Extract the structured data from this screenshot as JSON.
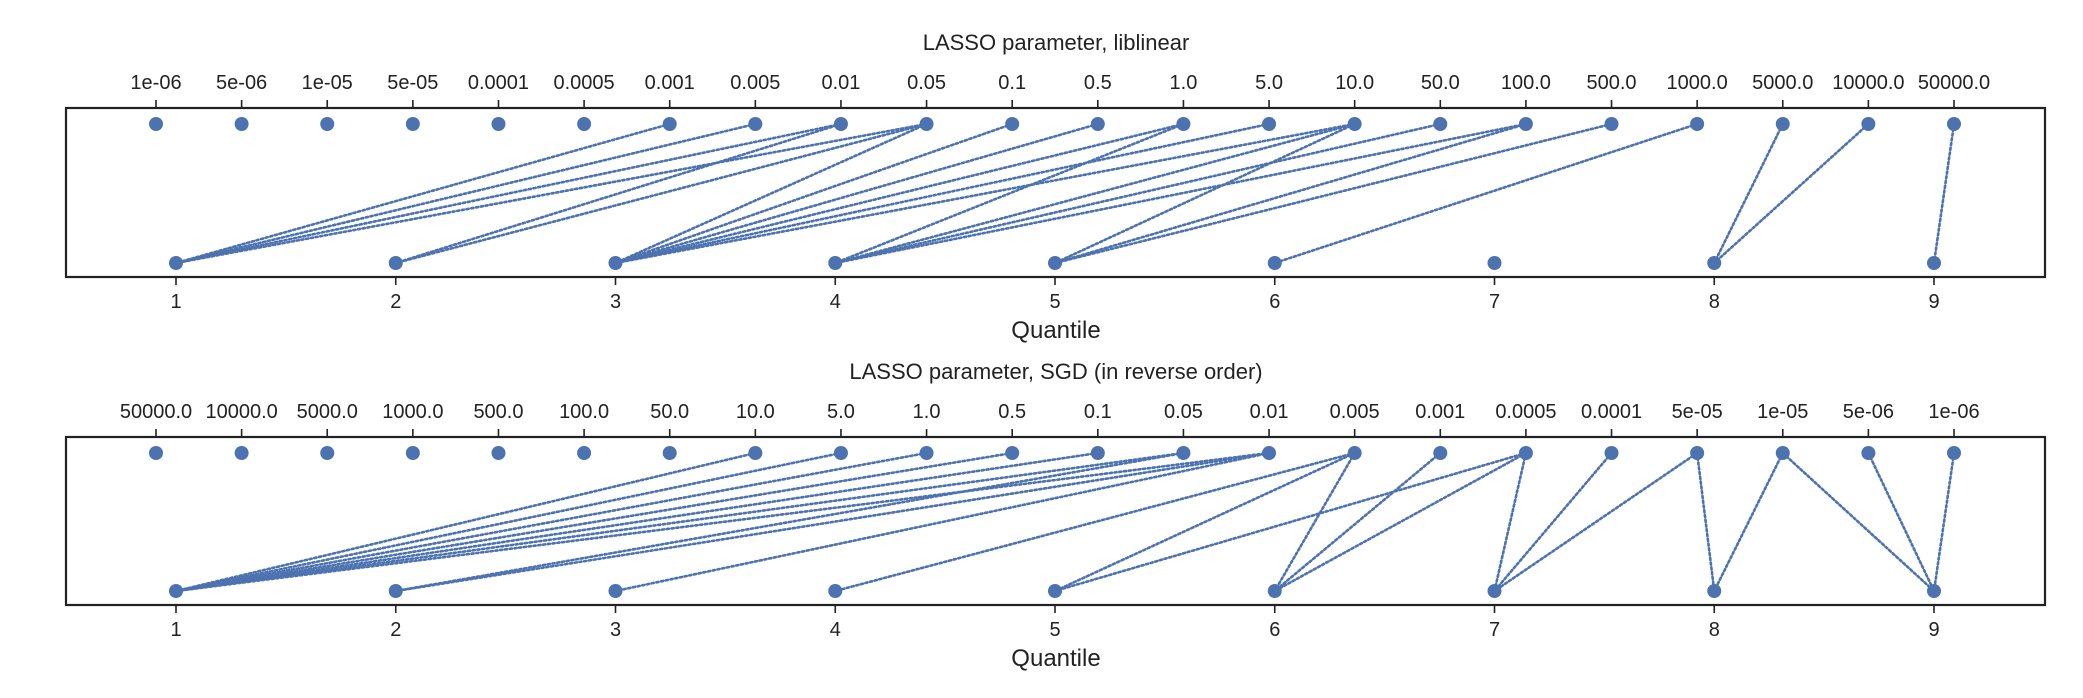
{
  "chart_data": [
    {
      "type": "bipartite",
      "title": "LASSO parameter, liblinear",
      "top_axis_labels": [
        "1e-06",
        "5e-06",
        "1e-05",
        "5e-05",
        "0.0001",
        "0.0005",
        "0.001",
        "0.005",
        "0.01",
        "0.05",
        "0.1",
        "0.5",
        "1.0",
        "5.0",
        "10.0",
        "50.0",
        "100.0",
        "500.0",
        "1000.0",
        "5000.0",
        "10000.0",
        "50000.0"
      ],
      "bottom_axis_labels": [
        "1",
        "2",
        "3",
        "4",
        "5",
        "6",
        "7",
        "8",
        "9"
      ],
      "xlabel": "Quantile",
      "color": "#4c72b0",
      "links": [
        [
          "0.001",
          "1"
        ],
        [
          "0.005",
          "1"
        ],
        [
          "0.01",
          "1"
        ],
        [
          "0.05",
          "1"
        ],
        [
          "0.01",
          "2"
        ],
        [
          "0.05",
          "2"
        ],
        [
          "0.05",
          "3"
        ],
        [
          "0.1",
          "3"
        ],
        [
          "0.5",
          "3"
        ],
        [
          "1.0",
          "3"
        ],
        [
          "5.0",
          "3"
        ],
        [
          "10.0",
          "3"
        ],
        [
          "1.0",
          "4"
        ],
        [
          "10.0",
          "4"
        ],
        [
          "50.0",
          "4"
        ],
        [
          "100.0",
          "4"
        ],
        [
          "10.0",
          "5"
        ],
        [
          "100.0",
          "5"
        ],
        [
          "500.0",
          "5"
        ],
        [
          "1000.0",
          "6"
        ],
        [
          "5000.0",
          "8"
        ],
        [
          "10000.0",
          "8"
        ],
        [
          "50000.0",
          "9"
        ]
      ]
    },
    {
      "type": "bipartite",
      "title": "LASSO parameter, SGD (in reverse order)",
      "top_axis_labels": [
        "50000.0",
        "10000.0",
        "5000.0",
        "1000.0",
        "500.0",
        "100.0",
        "50.0",
        "10.0",
        "5.0",
        "1.0",
        "0.5",
        "0.1",
        "0.05",
        "0.01",
        "0.005",
        "0.001",
        "0.0005",
        "0.0001",
        "5e-05",
        "1e-05",
        "5e-06",
        "1e-06"
      ],
      "bottom_axis_labels": [
        "1",
        "2",
        "3",
        "4",
        "5",
        "6",
        "7",
        "8",
        "9"
      ],
      "xlabel": "Quantile",
      "color": "#4c72b0",
      "links": [
        [
          "10.0",
          "1"
        ],
        [
          "5.0",
          "1"
        ],
        [
          "1.0",
          "1"
        ],
        [
          "0.5",
          "1"
        ],
        [
          "0.1",
          "1"
        ],
        [
          "0.05",
          "1"
        ],
        [
          "0.01",
          "1"
        ],
        [
          "0.05",
          "2"
        ],
        [
          "0.01",
          "2"
        ],
        [
          "0.01",
          "3"
        ],
        [
          "0.005",
          "4"
        ],
        [
          "0.005",
          "5"
        ],
        [
          "0.0005",
          "5"
        ],
        [
          "0.005",
          "6"
        ],
        [
          "0.001",
          "6"
        ],
        [
          "0.0005",
          "6"
        ],
        [
          "0.0005",
          "7"
        ],
        [
          "0.0001",
          "7"
        ],
        [
          "5e-05",
          "7"
        ],
        [
          "5e-05",
          "8"
        ],
        [
          "1e-05",
          "8"
        ],
        [
          "1e-05",
          "9"
        ],
        [
          "5e-06",
          "9"
        ],
        [
          "1e-06",
          "9"
        ]
      ]
    }
  ]
}
